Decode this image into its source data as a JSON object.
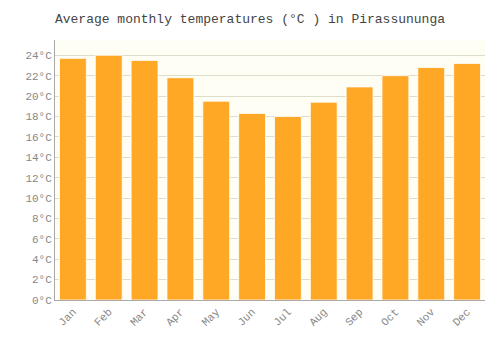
{
  "chart_data": {
    "type": "bar",
    "title": "Average monthly temperatures (°C ) in Pirassununga",
    "categories": [
      "Jan",
      "Feb",
      "Mar",
      "Apr",
      "May",
      "Jun",
      "Jul",
      "Aug",
      "Sep",
      "Oct",
      "Nov",
      "Dec"
    ],
    "values": [
      23.7,
      24.0,
      23.5,
      21.8,
      19.5,
      18.3,
      18.0,
      19.4,
      20.9,
      22.0,
      22.8,
      23.2
    ],
    "color": "#FFA826",
    "ylim": [
      0,
      25.5
    ],
    "yticks": [
      {
        "value": 0,
        "label": "0°C"
      },
      {
        "value": 2,
        "label": "2°C"
      },
      {
        "value": 4,
        "label": "4°C"
      },
      {
        "value": 6,
        "label": "6°C"
      },
      {
        "value": 8,
        "label": "8°C"
      },
      {
        "value": 10,
        "label": "10°C"
      },
      {
        "value": 12,
        "label": "12°C"
      },
      {
        "value": 14,
        "label": "14°C"
      },
      {
        "value": 16,
        "label": "16°C"
      },
      {
        "value": 18,
        "label": "18°C"
      },
      {
        "value": 20,
        "label": "20°C"
      },
      {
        "value": 22,
        "label": "22°C"
      },
      {
        "value": 24,
        "label": "24°C"
      }
    ],
    "grid": true
  }
}
